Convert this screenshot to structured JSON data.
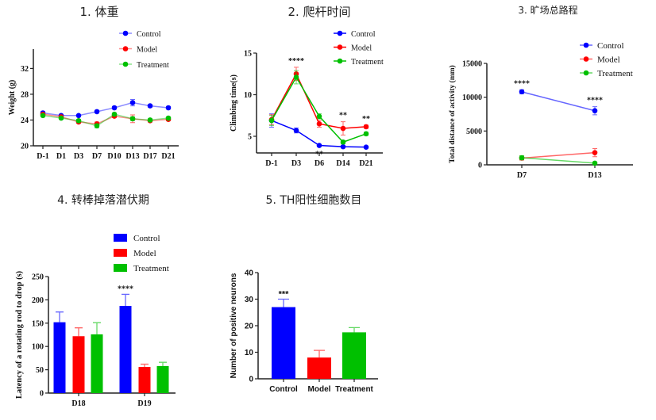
{
  "colors": {
    "Control": "#0000ff",
    "Model": "#ff0000",
    "Treatment": "#00c000"
  },
  "chart_data": [
    {
      "type": "line",
      "title": "1. 体重",
      "ylabel": "Weight (g)",
      "xlabel": "",
      "categories": [
        "D-1",
        "D1",
        "D3",
        "D7",
        "D10",
        "D13",
        "D17",
        "D21"
      ],
      "ylim": [
        20,
        35
      ],
      "yticks": [
        20,
        24,
        28,
        32
      ],
      "legend": "top-right",
      "series": [
        {
          "name": "Control",
          "values": [
            25.1,
            24.7,
            24.7,
            25.3,
            25.9,
            26.7,
            26.2,
            25.9
          ],
          "errors": [
            0.2,
            0.2,
            0.1,
            0.2,
            0.2,
            0.5,
            0.2,
            0.2
          ]
        },
        {
          "name": "Model",
          "values": [
            24.9,
            24.5,
            23.7,
            23.4,
            24.6,
            24.2,
            23.9,
            24.1
          ],
          "errors": [
            0.2,
            0.2,
            0.2,
            0.3,
            0.2,
            0.6,
            0.2,
            0.2
          ]
        },
        {
          "name": "Treatment",
          "values": [
            24.7,
            24.3,
            23.9,
            23.1,
            24.9,
            24.2,
            24.0,
            24.3
          ],
          "errors": [
            0.2,
            0.2,
            0.2,
            0.3,
            0.2,
            0.3,
            0.2,
            0.2
          ]
        }
      ],
      "annotations": []
    },
    {
      "type": "line",
      "title": "2. 爬杆时间",
      "ylabel": "Climbing time(s)",
      "xlabel": "",
      "categories": [
        "D-1",
        "D3",
        "D6",
        "D14",
        "D21"
      ],
      "ylim": [
        3,
        15
      ],
      "yticks": [
        5,
        10,
        15
      ],
      "legend": "top-right",
      "series": [
        {
          "name": "Control",
          "values": [
            6.9,
            5.7,
            3.9,
            3.75,
            3.7
          ],
          "errors": [
            0.8,
            0.3,
            0.1,
            0.1,
            0.1
          ]
        },
        {
          "name": "Model",
          "values": [
            7.0,
            12.5,
            6.5,
            5.95,
            6.15
          ],
          "errors": [
            0.6,
            0.8,
            0.4,
            0.8,
            0.2
          ]
        },
        {
          "name": "Treatment",
          "values": [
            6.9,
            12.1,
            7.4,
            4.3,
            5.3
          ],
          "errors": [
            0.6,
            0.8,
            0.3,
            0.2,
            0.2
          ]
        }
      ],
      "annotations": [
        {
          "category": "D3",
          "text": "****",
          "position": "above"
        },
        {
          "category": "D6",
          "text": "**",
          "position": "below"
        },
        {
          "category": "D14",
          "text": "**",
          "position": "above"
        },
        {
          "category": "D21",
          "text": "**",
          "position": "above"
        }
      ]
    },
    {
      "type": "line",
      "title": "3. 旷场总路程",
      "ylabel": "Total distance of activity (mm)",
      "xlabel": "",
      "categories": [
        "D7",
        "D13"
      ],
      "ylim": [
        0,
        15000
      ],
      "yticks": [
        0,
        5000,
        10000,
        15000
      ],
      "legend": "top-right",
      "series": [
        {
          "name": "Control",
          "values": [
            10800,
            8000
          ],
          "errors": [
            300,
            600
          ]
        },
        {
          "name": "Model",
          "values": [
            1000,
            1800
          ],
          "errors": [
            300,
            600
          ]
        },
        {
          "name": "Treatment",
          "values": [
            1050,
            250
          ],
          "errors": [
            300,
            100
          ]
        }
      ],
      "annotations": [
        {
          "category": "D7",
          "text": "****",
          "position": "above"
        },
        {
          "category": "D13",
          "text": "****",
          "position": "above"
        }
      ]
    },
    {
      "type": "bar",
      "title": "4. 转棒掉落潜伏期",
      "ylabel": "Latency of a rotating rod to drop (s)",
      "xlabel": "",
      "categories": [
        "D18",
        "D19"
      ],
      "ylim": [
        0,
        250
      ],
      "yticks": [
        0,
        50,
        100,
        150,
        200,
        250
      ],
      "legend": "top-right",
      "series": [
        {
          "name": "Control",
          "values": [
            152,
            187
          ],
          "errors": [
            22,
            25
          ]
        },
        {
          "name": "Model",
          "values": [
            122,
            56
          ],
          "errors": [
            18,
            6
          ]
        },
        {
          "name": "Treatment",
          "values": [
            126,
            58
          ],
          "errors": [
            25,
            8
          ]
        }
      ],
      "annotations": [
        {
          "category": "D19",
          "series": "Control",
          "text": "****"
        }
      ]
    },
    {
      "type": "bar",
      "title": "5. TH阳性细胞数目",
      "ylabel": "Number of positive neurons",
      "xlabel": "",
      "categories": [
        "Control",
        "Model",
        "Treatment"
      ],
      "ylim": [
        0,
        40
      ],
      "yticks": [
        0,
        10,
        20,
        30,
        40
      ],
      "values": [
        27,
        8,
        17.5
      ],
      "errors": [
        3,
        2.7,
        1.8
      ],
      "annotations": [
        {
          "category": "Control",
          "text": "***"
        }
      ]
    }
  ]
}
